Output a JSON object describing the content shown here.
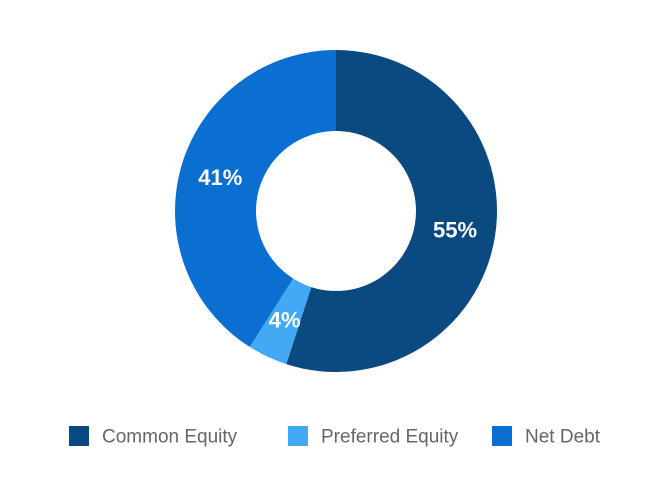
{
  "chart_data": {
    "type": "donut",
    "categories": [
      "Common Equity",
      "Preferred Equity",
      "Net Debt"
    ],
    "values": [
      55,
      4,
      41
    ],
    "value_labels": [
      "55%",
      "4%",
      "41%"
    ],
    "colors": [
      "#0b4a80",
      "#42a9f4",
      "#0b6fd1"
    ],
    "legend": "bottom"
  }
}
